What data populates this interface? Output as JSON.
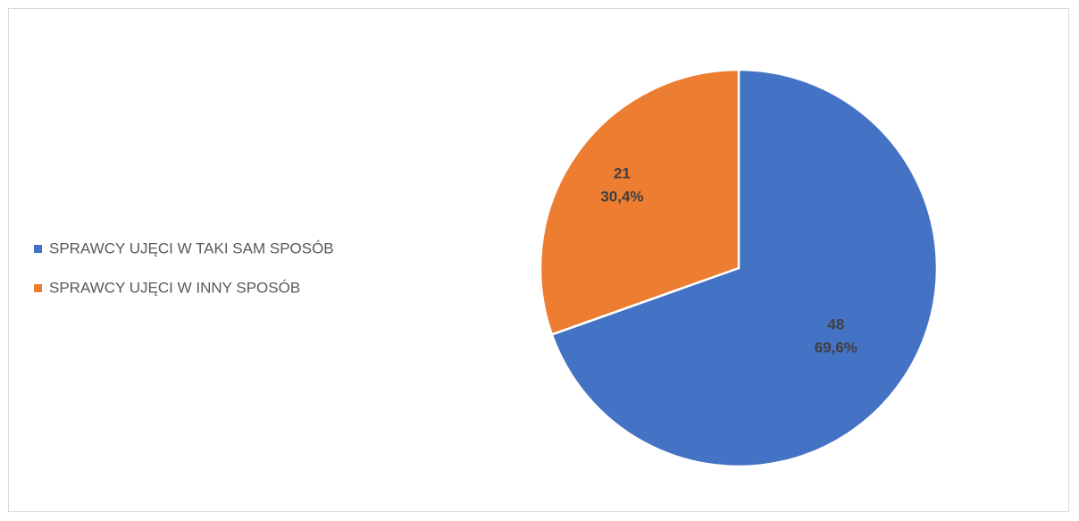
{
  "chart_data": {
    "type": "pie",
    "categories": [
      "SPRAWCY UJĘCI W TAKI SAM SPOSÓB",
      "SPRAWCY UJĘCI W INNY SPOSÓB"
    ],
    "values": [
      48,
      21
    ],
    "percentages": [
      69.6,
      30.4
    ],
    "percentage_labels": [
      "69,6%",
      "30,4%"
    ],
    "colors": [
      "#4472c4",
      "#ed7d31"
    ],
    "legend": "left"
  }
}
